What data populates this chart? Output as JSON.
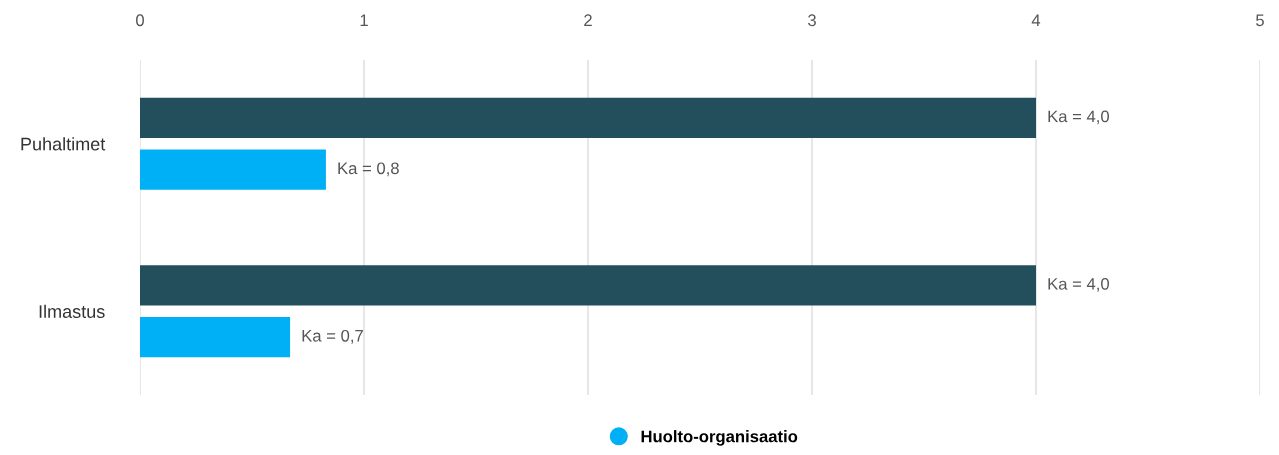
{
  "chart_data": {
    "type": "bar",
    "orientation": "horizontal",
    "categories": [
      "Puhaltimet",
      "Ilmastus"
    ],
    "series": [
      {
        "color": "#234e5c",
        "values": [
          4.0,
          4.0
        ],
        "value_labels": [
          "Ka = 4,0",
          "Ka = 4,0"
        ]
      },
      {
        "name": "Huolto-organisaatio",
        "color": "#00b0f6",
        "values": [
          0.83,
          0.67
        ],
        "value_labels": [
          "Ka = 0,8",
          "Ka = 0,7"
        ]
      }
    ],
    "xlim": [
      0,
      5
    ],
    "xticks": [
      0,
      1,
      2,
      3,
      4,
      5
    ],
    "grid": "x",
    "legend": "bottom"
  }
}
